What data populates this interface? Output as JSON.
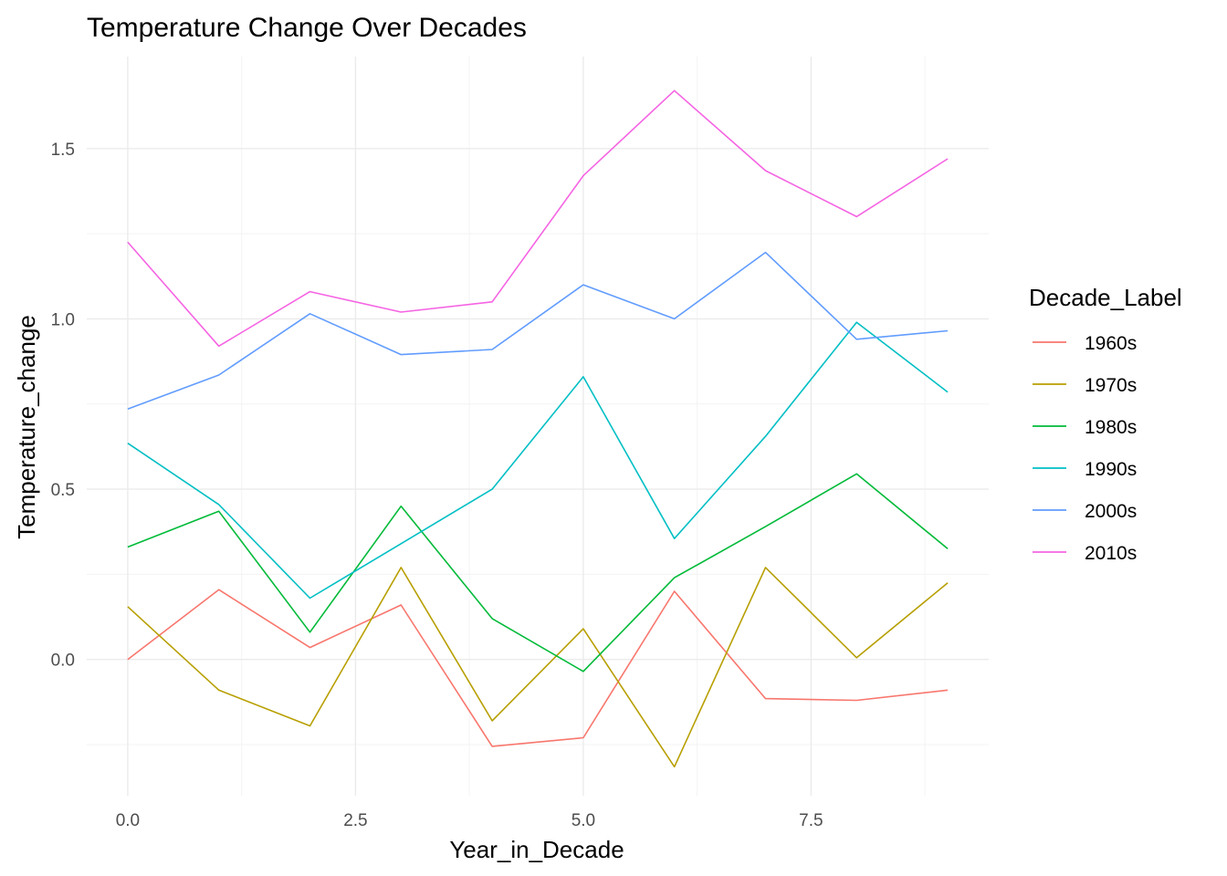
{
  "chart_data": {
    "type": "line",
    "title": "Temperature Change Over Decades",
    "xlabel": "Year_in_Decade",
    "ylabel": "Temperature_change",
    "xlim": [
      -0.45,
      9.45
    ],
    "ylim": [
      -0.4,
      1.77
    ],
    "x_ticks": [
      0,
      2.5,
      5,
      7.5
    ],
    "x_tick_labels": [
      "0.0",
      "2.5",
      "5.0",
      "7.5"
    ],
    "x_minor_ticks": [
      1.25,
      3.75,
      6.25,
      8.75
    ],
    "y_ticks": [
      0,
      0.5,
      1,
      1.5
    ],
    "y_tick_labels": [
      "0.0",
      "0.5",
      "1.0",
      "1.5"
    ],
    "y_minor_ticks": [
      -0.25,
      0.25,
      0.75,
      1.25
    ],
    "grid": true,
    "legend_title": "Decade_Label",
    "legend_position": "right",
    "x": [
      0,
      1,
      2,
      3,
      4,
      5,
      6,
      7,
      8,
      9
    ],
    "series": [
      {
        "name": "1960s",
        "color": "#F8766D",
        "values": [
          0.0,
          0.205,
          0.035,
          0.16,
          -0.255,
          -0.23,
          0.2,
          -0.115,
          -0.12,
          -0.09
        ]
      },
      {
        "name": "1970s",
        "color": "#B79F00",
        "values": [
          0.155,
          -0.09,
          -0.195,
          0.27,
          -0.18,
          0.09,
          -0.315,
          0.27,
          0.005,
          0.225
        ]
      },
      {
        "name": "1980s",
        "color": "#00BA38",
        "values": [
          0.33,
          0.435,
          0.08,
          0.45,
          0.12,
          -0.035,
          0.24,
          0.39,
          0.545,
          0.325
        ]
      },
      {
        "name": "1990s",
        "color": "#00BFC4",
        "values": [
          0.635,
          0.455,
          0.18,
          0.34,
          0.5,
          0.83,
          0.355,
          0.655,
          0.99,
          0.785
        ]
      },
      {
        "name": "2000s",
        "color": "#619CFF",
        "values": [
          0.735,
          0.835,
          1.015,
          0.895,
          0.91,
          1.1,
          1.0,
          1.195,
          0.94,
          0.965
        ]
      },
      {
        "name": "2010s",
        "color": "#F564E3",
        "values": [
          1.225,
          0.92,
          1.08,
          1.02,
          1.05,
          1.42,
          1.67,
          1.435,
          1.3,
          1.47
        ]
      }
    ]
  }
}
